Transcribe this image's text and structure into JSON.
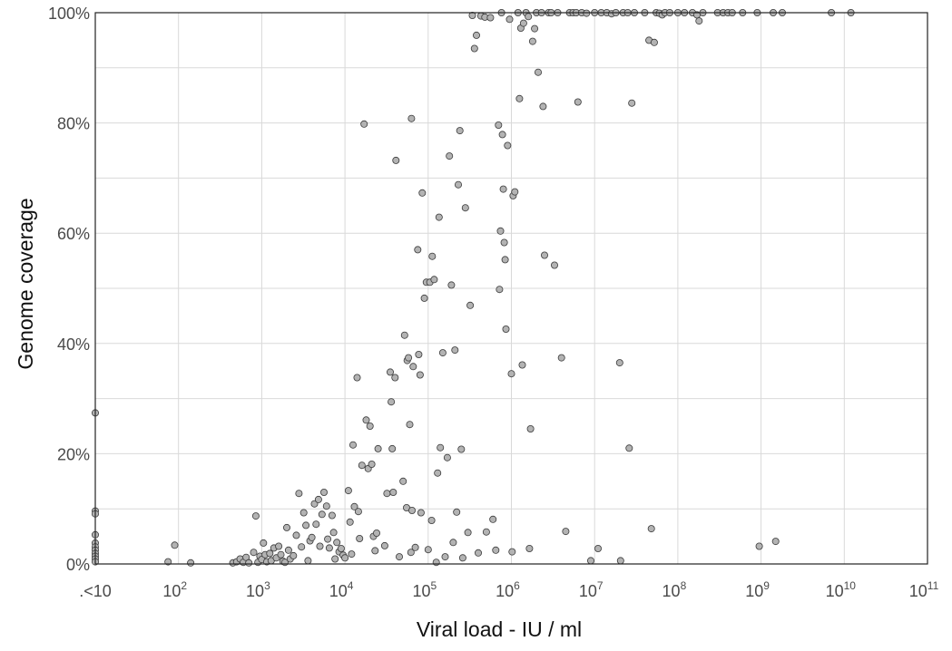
{
  "chart_data": {
    "type": "scatter",
    "xlabel": "Viral load - IU / ml",
    "ylabel": "Genome coverage",
    "x_scale": "log10",
    "y_unit": "percent",
    "xlim": [
      10,
      100000000000
    ],
    "ylim": [
      0,
      100
    ],
    "grid": true,
    "legend": "none",
    "marker_color": "#b3b3b3",
    "marker_edge_color": "#3a3a3a",
    "x_tick_labels": [
      {
        "value": 10,
        "label": ".<10"
      },
      {
        "value": 100,
        "label": "10",
        "sup": "2"
      },
      {
        "value": 1000,
        "label": "10",
        "sup": "3"
      },
      {
        "value": 10000,
        "label": "10",
        "sup": "4"
      },
      {
        "value": 100000,
        "label": "10",
        "sup": "5"
      },
      {
        "value": 1000000,
        "label": "10",
        "sup": "6"
      },
      {
        "value": 10000000,
        "label": "10",
        "sup": "7"
      },
      {
        "value": 100000000,
        "label": "10",
        "sup": "8"
      },
      {
        "value": 1000000000,
        "label": "10",
        "sup": "9"
      },
      {
        "value": 10000000000,
        "label": "10",
        "sup": "10"
      },
      {
        "value": 100000000000,
        "label": "10",
        "sup": "11"
      }
    ],
    "y_tick_labels": [
      {
        "value": 0,
        "label": "0%"
      },
      {
        "value": 20,
        "label": "20%"
      },
      {
        "value": 40,
        "label": "40%"
      },
      {
        "value": 60,
        "label": "60%"
      },
      {
        "value": 80,
        "label": "80%"
      },
      {
        "value": 100,
        "label": "100%"
      }
    ],
    "series": [
      {
        "points": [
          [
            10,
            27.4
          ],
          [
            10,
            9.6
          ],
          [
            10,
            9.1
          ],
          [
            10,
            5.3
          ],
          [
            10,
            3.8
          ],
          [
            10,
            3.1
          ],
          [
            10,
            2.5
          ],
          [
            10,
            1.9
          ],
          [
            10,
            1.4
          ],
          [
            10,
            0.9
          ],
          [
            10,
            0.4
          ],
          [
            75,
            0.4
          ],
          [
            90,
            3.4
          ],
          [
            140,
            0.2
          ],
          [
            450,
            0.2
          ],
          [
            500,
            0.4
          ],
          [
            550,
            0.9
          ],
          [
            600,
            0.3
          ],
          [
            650,
            1.2
          ],
          [
            700,
            0.2
          ],
          [
            800,
            2.1
          ],
          [
            850,
            8.7
          ],
          [
            900,
            0.3
          ],
          [
            950,
            1.4
          ],
          [
            1000,
            0.8
          ],
          [
            1050,
            3.8
          ],
          [
            1100,
            1.7
          ],
          [
            1150,
            0.4
          ],
          [
            1250,
            1.9
          ],
          [
            1300,
            0.6
          ],
          [
            1400,
            2.9
          ],
          [
            1500,
            1.1
          ],
          [
            1600,
            3.2
          ],
          [
            1700,
            1.7
          ],
          [
            1800,
            0.5
          ],
          [
            1900,
            0.3
          ],
          [
            2000,
            6.6
          ],
          [
            2100,
            2.5
          ],
          [
            2200,
            0.9
          ],
          [
            2400,
            1.5
          ],
          [
            2600,
            5.2
          ],
          [
            2800,
            12.8
          ],
          [
            3000,
            3.1
          ],
          [
            3200,
            9.3
          ],
          [
            3400,
            7.0
          ],
          [
            3600,
            0.6
          ],
          [
            3800,
            4.2
          ],
          [
            4000,
            4.8
          ],
          [
            4300,
            10.9
          ],
          [
            4500,
            7.2
          ],
          [
            4800,
            11.7
          ],
          [
            5000,
            3.2
          ],
          [
            5300,
            9.0
          ],
          [
            5600,
            13.0
          ],
          [
            6000,
            10.5
          ],
          [
            6200,
            4.5
          ],
          [
            6500,
            2.9
          ],
          [
            7000,
            8.8
          ],
          [
            7300,
            5.7
          ],
          [
            7600,
            0.9
          ],
          [
            8000,
            3.9
          ],
          [
            8500,
            2.2
          ],
          [
            9000,
            2.8
          ],
          [
            9500,
            1.6
          ],
          [
            10000,
            1.1
          ],
          [
            11000,
            13.3
          ],
          [
            11500,
            7.6
          ],
          [
            12000,
            1.8
          ],
          [
            12500,
            21.6
          ],
          [
            13000,
            10.4
          ],
          [
            14000,
            33.8
          ],
          [
            14500,
            9.5
          ],
          [
            15000,
            4.6
          ],
          [
            16000,
            17.9
          ],
          [
            17000,
            79.8
          ],
          [
            18000,
            26.1
          ],
          [
            19000,
            17.3
          ],
          [
            20000,
            25.0
          ],
          [
            21000,
            18.1
          ],
          [
            22000,
            5.0
          ],
          [
            23000,
            2.4
          ],
          [
            24000,
            5.6
          ],
          [
            25000,
            20.9
          ],
          [
            30000,
            3.3
          ],
          [
            32000,
            12.8
          ],
          [
            35000,
            34.8
          ],
          [
            36000,
            29.4
          ],
          [
            37000,
            20.9
          ],
          [
            38000,
            13.0
          ],
          [
            40000,
            33.8
          ],
          [
            41000,
            73.2
          ],
          [
            45000,
            1.3
          ],
          [
            50000,
            15.0
          ],
          [
            52000,
            41.5
          ],
          [
            55000,
            10.2
          ],
          [
            56000,
            36.9
          ],
          [
            58000,
            37.4
          ],
          [
            60000,
            25.3
          ],
          [
            62000,
            2.1
          ],
          [
            63000,
            80.8
          ],
          [
            64000,
            9.7
          ],
          [
            66000,
            35.8
          ],
          [
            70000,
            3.0
          ],
          [
            75000,
            57.0
          ],
          [
            77000,
            38.0
          ],
          [
            80000,
            34.3
          ],
          [
            82000,
            9.3
          ],
          [
            85000,
            67.3
          ],
          [
            90000,
            48.2
          ],
          [
            95000,
            51.1
          ],
          [
            100000,
            2.6
          ],
          [
            105000,
            51.1
          ],
          [
            110000,
            7.9
          ],
          [
            112000,
            55.8
          ],
          [
            118000,
            51.6
          ],
          [
            125000,
            0.3
          ],
          [
            130000,
            16.5
          ],
          [
            135000,
            62.9
          ],
          [
            140000,
            21.1
          ],
          [
            150000,
            38.3
          ],
          [
            160000,
            1.3
          ],
          [
            170000,
            19.3
          ],
          [
            180000,
            74.0
          ],
          [
            190000,
            50.6
          ],
          [
            200000,
            3.9
          ],
          [
            210000,
            38.8
          ],
          [
            220000,
            9.4
          ],
          [
            230000,
            68.8
          ],
          [
            240000,
            78.6
          ],
          [
            250000,
            20.8
          ],
          [
            260000,
            1.1
          ],
          [
            280000,
            64.6
          ],
          [
            300000,
            5.7
          ],
          [
            320000,
            46.9
          ],
          [
            340000,
            99.5
          ],
          [
            360000,
            93.5
          ],
          [
            380000,
            95.9
          ],
          [
            400000,
            2.0
          ],
          [
            430000,
            99.4
          ],
          [
            480000,
            99.2
          ],
          [
            500000,
            5.8
          ],
          [
            560000,
            99.1
          ],
          [
            600000,
            8.1
          ],
          [
            650000,
            2.5
          ],
          [
            700000,
            79.6
          ],
          [
            720000,
            49.8
          ],
          [
            740000,
            60.4
          ],
          [
            760000,
            100
          ],
          [
            780000,
            77.9
          ],
          [
            800000,
            68.0
          ],
          [
            820000,
            58.3
          ],
          [
            840000,
            55.2
          ],
          [
            860000,
            42.6
          ],
          [
            900000,
            75.9
          ],
          [
            950000,
            98.8
          ],
          [
            1000000,
            34.5
          ],
          [
            1020000,
            2.2
          ],
          [
            1050000,
            66.8
          ],
          [
            1100000,
            67.5
          ],
          [
            1200000,
            100
          ],
          [
            1250000,
            84.4
          ],
          [
            1300000,
            97.2
          ],
          [
            1350000,
            36.1
          ],
          [
            1400000,
            98.1
          ],
          [
            1500000,
            100
          ],
          [
            1600000,
            99.3
          ],
          [
            1650000,
            2.8
          ],
          [
            1700000,
            24.5
          ],
          [
            1800000,
            94.8
          ],
          [
            1900000,
            97.1
          ],
          [
            2000000,
            100
          ],
          [
            2100000,
            89.2
          ],
          [
            2300000,
            100
          ],
          [
            2400000,
            83.0
          ],
          [
            2500000,
            56.0
          ],
          [
            2800000,
            100
          ],
          [
            3000000,
            100
          ],
          [
            3300000,
            54.2
          ],
          [
            3600000,
            100
          ],
          [
            4000000,
            37.4
          ],
          [
            4500000,
            5.9
          ],
          [
            5000000,
            100
          ],
          [
            5500000,
            100
          ],
          [
            6000000,
            100
          ],
          [
            6300000,
            83.8
          ],
          [
            7000000,
            100
          ],
          [
            8000000,
            99.9
          ],
          [
            9000000,
            0.6
          ],
          [
            10000000,
            100
          ],
          [
            11000000,
            2.8
          ],
          [
            12000000,
            100
          ],
          [
            14000000,
            100
          ],
          [
            16000000,
            99.8
          ],
          [
            18000000,
            100
          ],
          [
            20000000,
            36.5
          ],
          [
            20500000,
            0.6
          ],
          [
            22000000,
            100
          ],
          [
            25000000,
            100
          ],
          [
            26000000,
            21.0
          ],
          [
            28000000,
            83.6
          ],
          [
            30000000,
            100
          ],
          [
            40000000,
            100
          ],
          [
            45000000,
            95.0
          ],
          [
            48000000,
            6.4
          ],
          [
            52000000,
            94.6
          ],
          [
            55000000,
            100
          ],
          [
            60000000,
            99.9
          ],
          [
            65000000,
            99.6
          ],
          [
            70000000,
            100
          ],
          [
            80000000,
            100
          ],
          [
            100000000,
            100
          ],
          [
            120000000,
            100
          ],
          [
            150000000,
            100
          ],
          [
            170000000,
            99.6
          ],
          [
            180000000,
            98.5
          ],
          [
            200000000,
            100
          ],
          [
            300000000,
            100
          ],
          [
            350000000,
            100
          ],
          [
            400000000,
            100
          ],
          [
            450000000,
            100
          ],
          [
            600000000,
            100
          ],
          [
            900000000,
            100
          ],
          [
            950000000,
            3.2
          ],
          [
            1400000000,
            100
          ],
          [
            1500000000,
            4.1
          ],
          [
            1800000000,
            100
          ],
          [
            7000000000,
            100
          ],
          [
            12000000000,
            100
          ]
        ]
      }
    ]
  }
}
